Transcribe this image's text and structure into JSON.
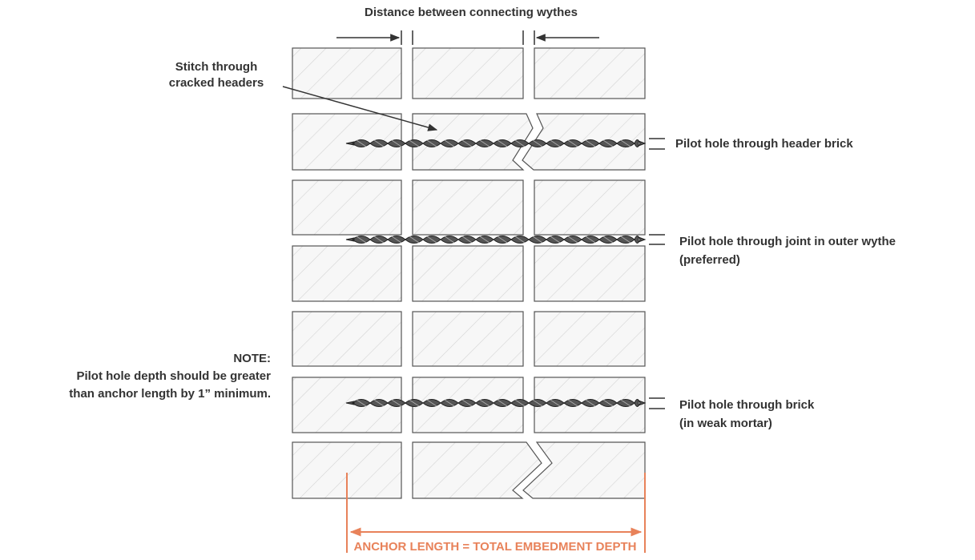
{
  "header": {
    "title": "Distance between connecting wythes"
  },
  "callouts": {
    "stitch": {
      "lines": [
        "Stitch through",
        "cracked headers"
      ]
    },
    "header_brick": {
      "lines": [
        "Pilot hole through header brick"
      ]
    },
    "outer_wythe": {
      "lines": [
        "Pilot hole through joint in outer wythe",
        "(preferred)"
      ]
    },
    "weak_mortar": {
      "lines": [
        "Pilot hole through brick",
        "(in weak mortar)"
      ]
    }
  },
  "note": {
    "lines": [
      "NOTE:",
      "Pilot hole depth should be greater",
      "than anchor length by 1” minimum."
    ]
  },
  "footer": {
    "label": "ANCHOR LENGTH = TOTAL EMBEDMENT DEPTH"
  }
}
